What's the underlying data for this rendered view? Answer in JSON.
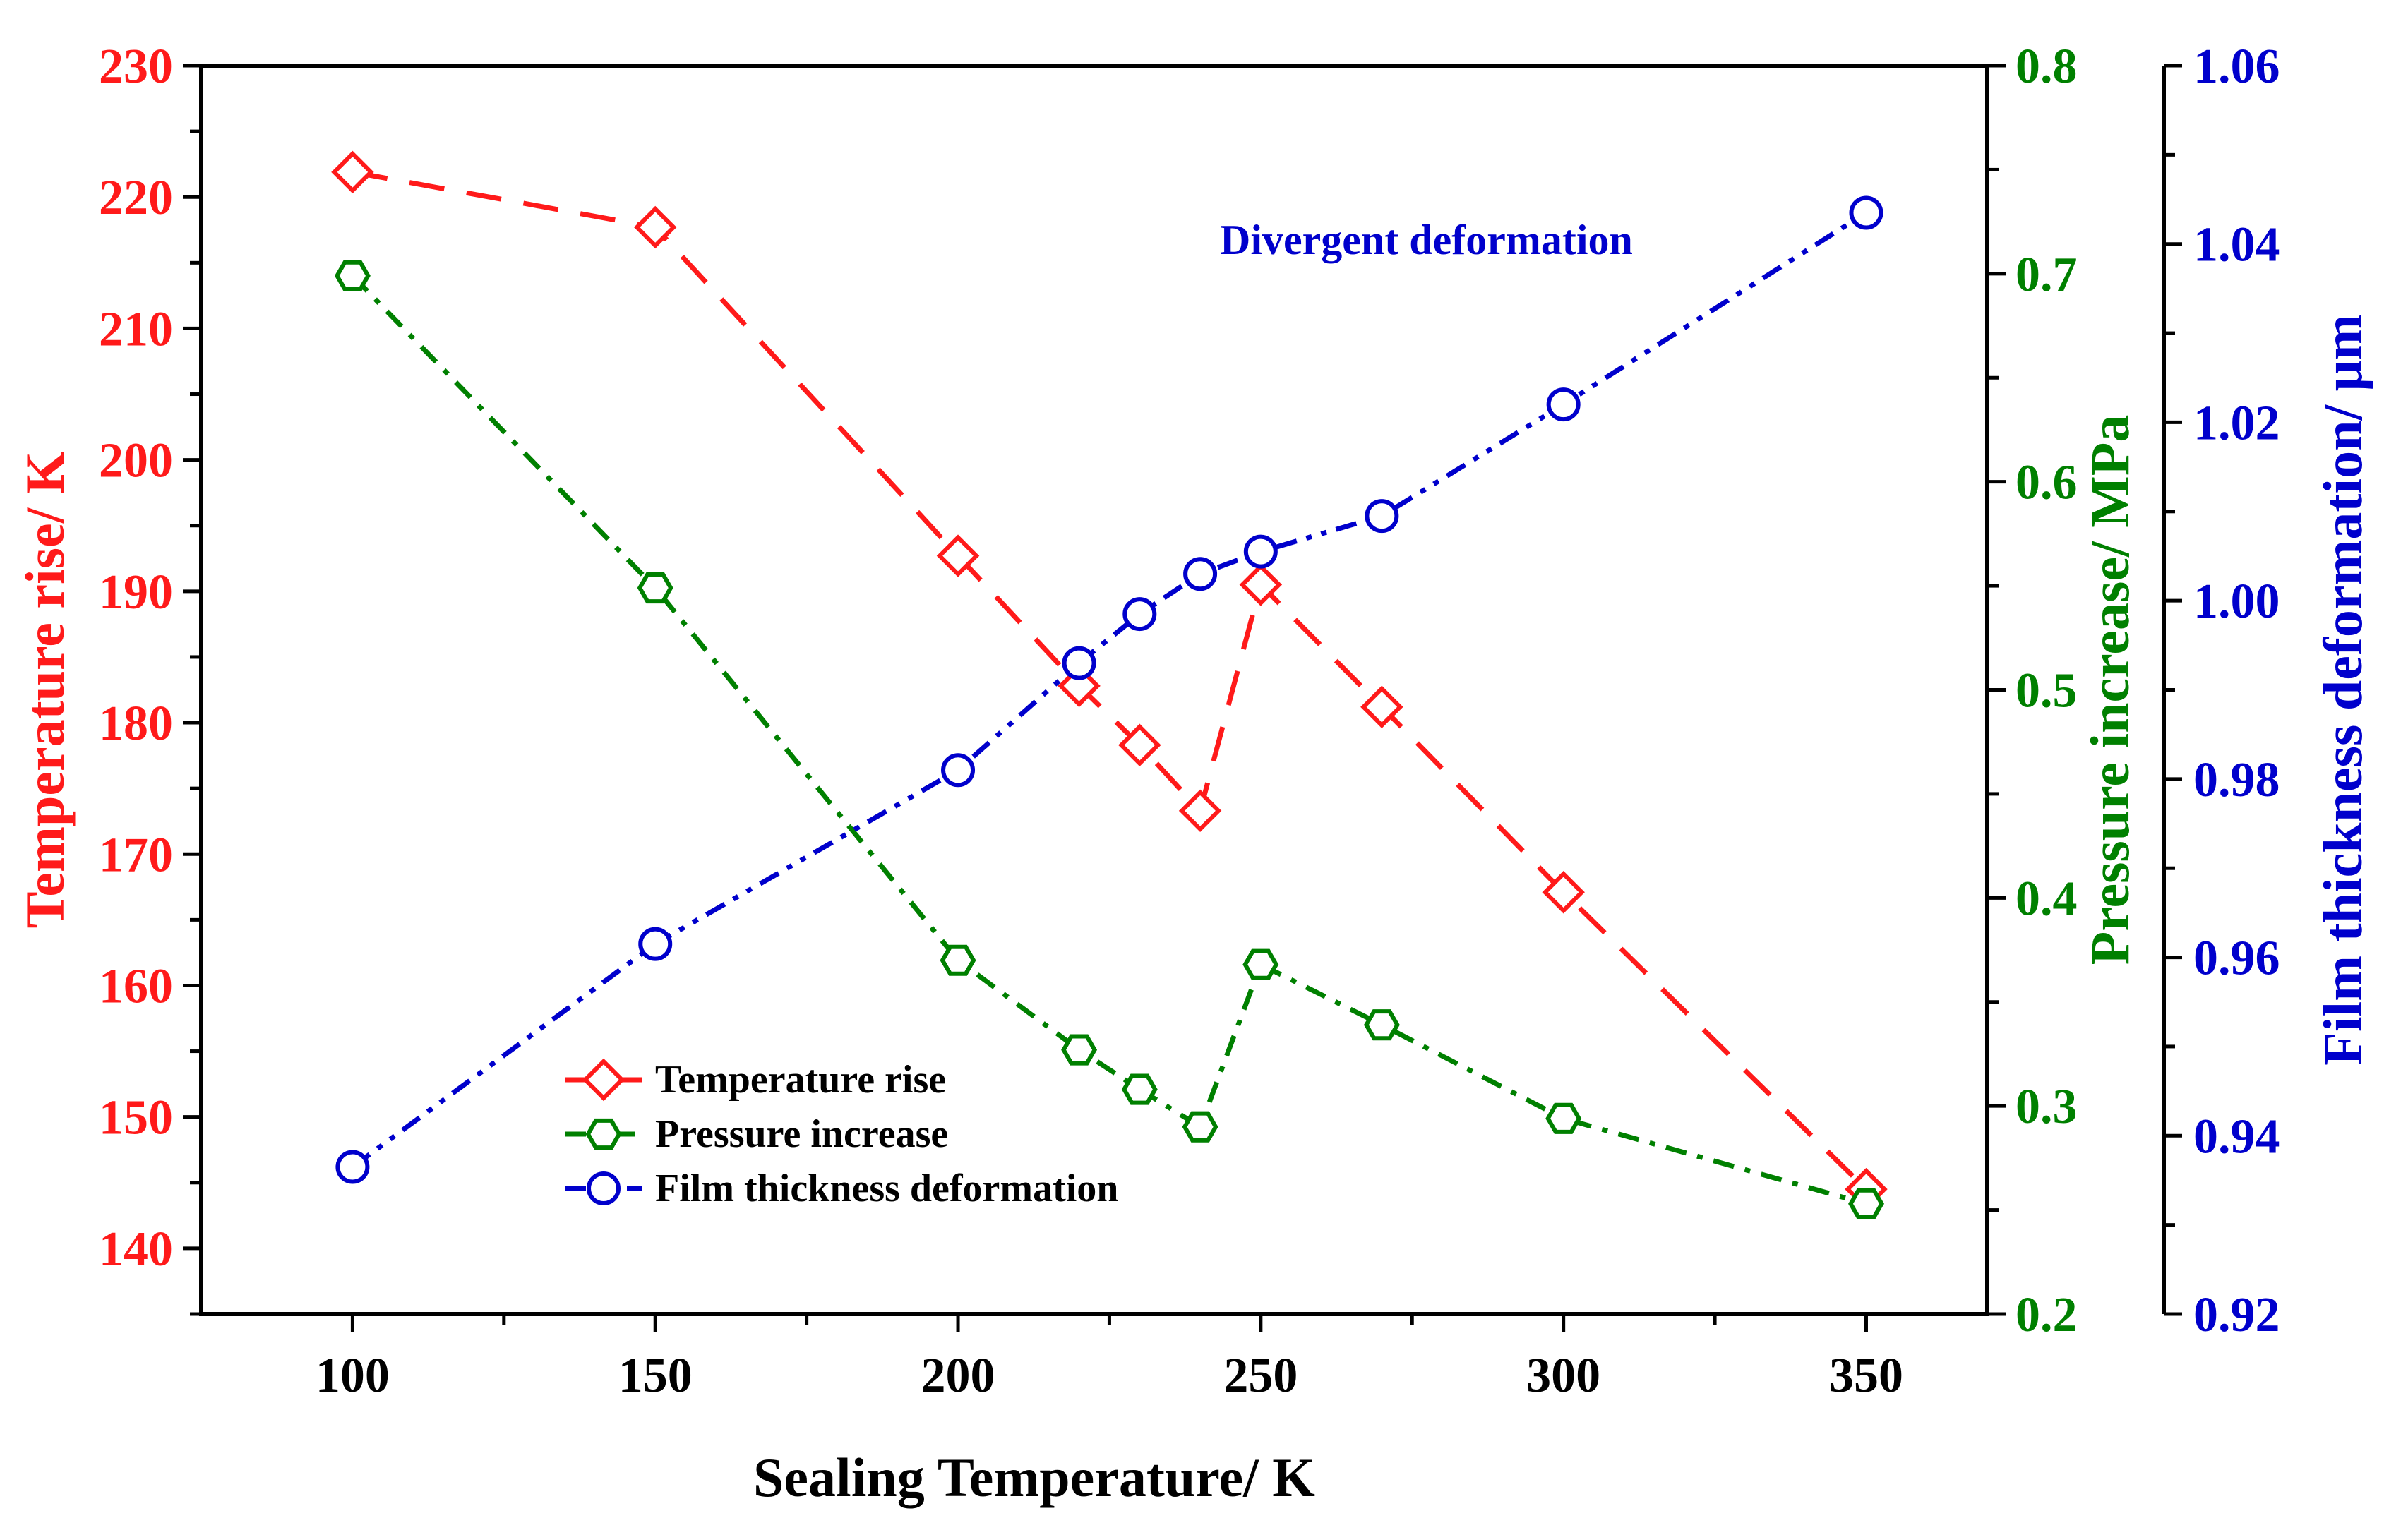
{
  "chart_data": {
    "type": "line",
    "title": "",
    "xlabel": "Sealing Temperature/ K",
    "xlim": [
      75,
      370
    ],
    "xticks": [
      100,
      150,
      200,
      250,
      300,
      350
    ],
    "x": [
      100,
      150,
      200,
      220,
      230,
      240,
      250,
      270,
      300,
      350
    ],
    "axes": {
      "temperature": {
        "label": "Temperature rise/ K",
        "ylim": [
          135,
          230
        ],
        "ticks": [
          140,
          150,
          160,
          170,
          180,
          190,
          200,
          210,
          220,
          230
        ],
        "color": "#ff1a1a"
      },
      "pressure": {
        "label": "Pressure increase/ MPa",
        "ylim": [
          0.2,
          0.8
        ],
        "ticks": [
          0.2,
          0.3,
          0.4,
          0.5,
          0.6,
          0.7,
          0.8
        ],
        "color": "#008000"
      },
      "film": {
        "label": "Film thickness deformation/ μm",
        "ylim": [
          0.92,
          1.06
        ],
        "ticks": [
          0.92,
          0.94,
          0.96,
          0.98,
          1.0,
          1.02,
          1.04,
          1.06
        ],
        "color": "#0000cc"
      }
    },
    "series": [
      {
        "name": "Temperature rise",
        "axis": "temperature",
        "marker": "diamond",
        "dash": "dash",
        "color": "#ff1a1a",
        "values": [
          221.9,
          217.7,
          192.7,
          182.8,
          178.3,
          173.3,
          190.5,
          181.2,
          167.1,
          144.5
        ]
      },
      {
        "name": "Pressure increase",
        "axis": "pressure",
        "marker": "hexagon",
        "dash": "dashdot",
        "color": "#008000",
        "values": [
          0.699,
          0.549,
          0.37,
          0.327,
          0.308,
          0.29,
          0.368,
          0.339,
          0.294,
          0.253
        ]
      },
      {
        "name": "Film thickness deformation",
        "axis": "film",
        "marker": "circle",
        "dash": "dashdotdot",
        "color": "#0000cc",
        "values": [
          0.9365,
          0.9615,
          0.981,
          0.993,
          0.9985,
          1.003,
          1.0055,
          1.0095,
          1.022,
          1.0435
        ]
      }
    ],
    "annotations": [
      {
        "text": "Divergent deformation",
        "color": "#0000cc"
      }
    ],
    "legend": {
      "position": "lower-left",
      "entries": [
        "Temperature rise",
        "Pressure increase",
        "Film thickness deformation"
      ]
    }
  }
}
